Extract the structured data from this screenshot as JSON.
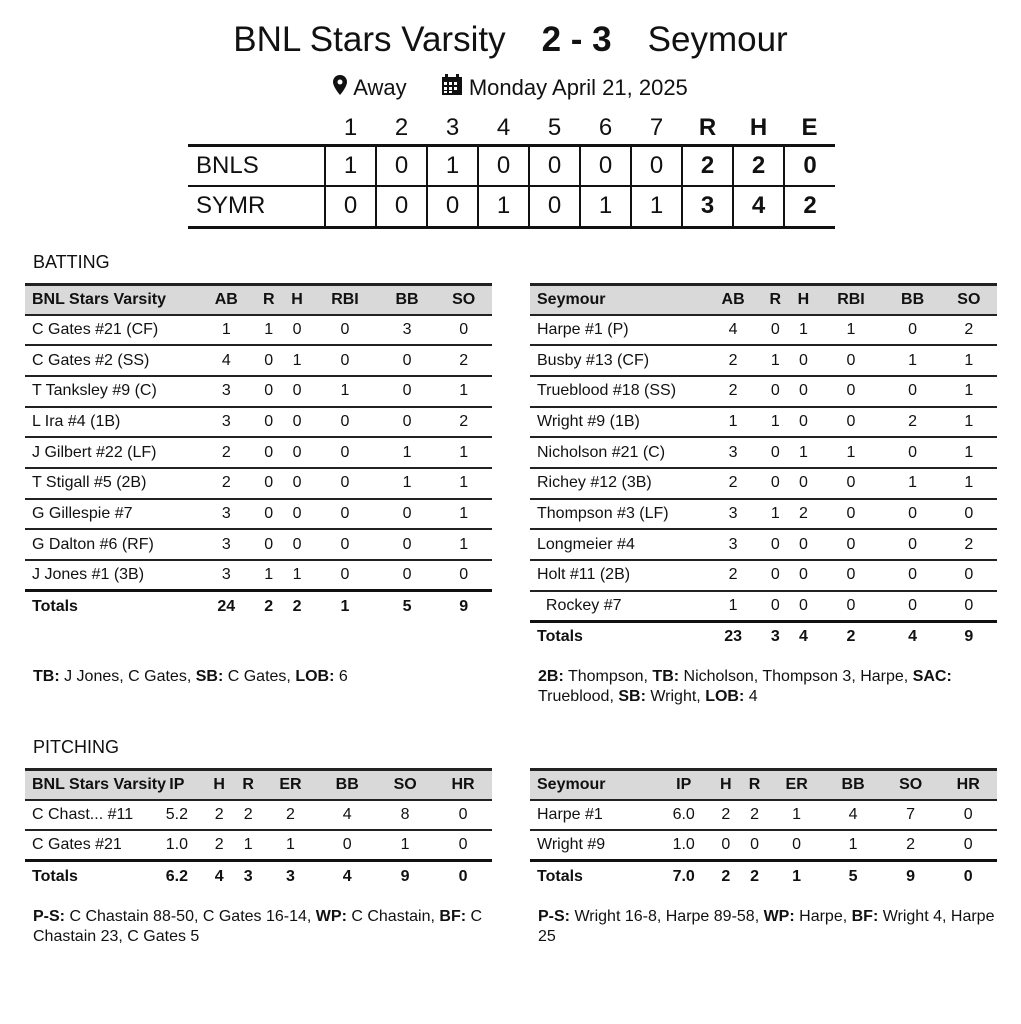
{
  "header": {
    "home": "BNL Stars Varsity",
    "score": "2 - 3",
    "away": "Seymour",
    "location": "Away",
    "date": "Monday April 21, 2025",
    "location_icon": "map-pin-icon",
    "date_icon": "calendar-icon"
  },
  "linescore": {
    "columns": [
      "1",
      "2",
      "3",
      "4",
      "5",
      "6",
      "7",
      "R",
      "H",
      "E"
    ],
    "rows": [
      {
        "team": "BNLS",
        "values": [
          "1",
          "0",
          "1",
          "0",
          "0",
          "0",
          "0",
          "2",
          "2",
          "0"
        ]
      },
      {
        "team": "SYMR",
        "values": [
          "0",
          "0",
          "0",
          "1",
          "0",
          "1",
          "1",
          "3",
          "4",
          "2"
        ]
      }
    ]
  },
  "batting": {
    "label": "BATTING",
    "tables": [
      {
        "team": "BNL Stars Varsity",
        "columns": [
          "AB",
          "R",
          "H",
          "RBI",
          "BB",
          "SO"
        ],
        "rows": [
          [
            "C Gates #21 (CF)",
            "1",
            "1",
            "0",
            "0",
            "3",
            "0"
          ],
          [
            "C Gates #2 (SS)",
            "4",
            "0",
            "1",
            "0",
            "0",
            "2"
          ],
          [
            "T Tanksley #9 (C)",
            "3",
            "0",
            "0",
            "1",
            "0",
            "1"
          ],
          [
            "L Ira #4 (1B)",
            "3",
            "0",
            "0",
            "0",
            "0",
            "2"
          ],
          [
            "J Gilbert #22 (LF)",
            "2",
            "0",
            "0",
            "0",
            "1",
            "1"
          ],
          [
            "T Stigall #5 (2B)",
            "2",
            "0",
            "0",
            "0",
            "1",
            "1"
          ],
          [
            "G Gillespie #7",
            "3",
            "0",
            "0",
            "0",
            "0",
            "1"
          ],
          [
            "G Dalton #6 (RF)",
            "3",
            "0",
            "0",
            "0",
            "0",
            "1"
          ],
          [
            "J Jones #1 (3B)",
            "3",
            "1",
            "1",
            "0",
            "0",
            "0"
          ]
        ],
        "totals": [
          "Totals",
          "24",
          "2",
          "2",
          "1",
          "5",
          "9"
        ],
        "notes": [
          [
            "TB:",
            " J Jones, C Gates, "
          ],
          [
            "SB:",
            " C Gates, "
          ],
          [
            "LOB:",
            " 6"
          ]
        ]
      },
      {
        "team": "Seymour",
        "columns": [
          "AB",
          "R",
          "H",
          "RBI",
          "BB",
          "SO"
        ],
        "rows": [
          [
            "Harpe #1 (P)",
            "4",
            "0",
            "1",
            "1",
            "0",
            "2"
          ],
          [
            "Busby #13 (CF)",
            "2",
            "1",
            "0",
            "0",
            "1",
            "1"
          ],
          [
            "Trueblood #18 (SS)",
            "2",
            "0",
            "0",
            "0",
            "0",
            "1"
          ],
          [
            "Wright #9 (1B)",
            "1",
            "1",
            "0",
            "0",
            "2",
            "1"
          ],
          [
            "Nicholson #21 (C)",
            "3",
            "0",
            "1",
            "1",
            "0",
            "1"
          ],
          [
            "Richey #12 (3B)",
            "2",
            "0",
            "0",
            "0",
            "1",
            "1"
          ],
          [
            "Thompson #3 (LF)",
            "3",
            "1",
            "2",
            "0",
            "0",
            "0"
          ],
          [
            "Longmeier #4",
            "3",
            "0",
            "0",
            "0",
            "0",
            "2"
          ],
          [
            "Holt #11 (2B)",
            "2",
            "0",
            "0",
            "0",
            "0",
            "0"
          ],
          [
            "  Rockey #7",
            "1",
            "0",
            "0",
            "0",
            "0",
            "0"
          ]
        ],
        "totals": [
          "Totals",
          "23",
          "3",
          "4",
          "2",
          "4",
          "9"
        ],
        "notes": [
          [
            "2B:",
            " Thompson, "
          ],
          [
            "TB:",
            " Nicholson, Thompson 3, Harpe, "
          ],
          [
            "SAC:",
            " Trueblood, "
          ],
          [
            "SB:",
            " Wright, "
          ],
          [
            "LOB:",
            " 4"
          ]
        ]
      }
    ]
  },
  "pitching": {
    "label": "PITCHING",
    "tables": [
      {
        "team": "BNL Stars Varsity",
        "columns": [
          "IP",
          "H",
          "R",
          "ER",
          "BB",
          "SO",
          "HR"
        ],
        "rows": [
          [
            "C Chast... #11",
            "5.2",
            "2",
            "2",
            "2",
            "4",
            "8",
            "0"
          ],
          [
            "C Gates #21",
            "1.0",
            "2",
            "1",
            "1",
            "0",
            "1",
            "0"
          ]
        ],
        "totals": [
          "Totals",
          "6.2",
          "4",
          "3",
          "3",
          "4",
          "9",
          "0"
        ],
        "notes": [
          [
            "P-S:",
            " C Chastain 88-50, C Gates 16-14, "
          ],
          [
            "WP:",
            " C Chastain, "
          ],
          [
            "BF:",
            " C Chastain 23, C Gates 5"
          ]
        ]
      },
      {
        "team": "Seymour",
        "columns": [
          "IP",
          "H",
          "R",
          "ER",
          "BB",
          "SO",
          "HR"
        ],
        "rows": [
          [
            "Harpe #1",
            "6.0",
            "2",
            "2",
            "1",
            "4",
            "7",
            "0"
          ],
          [
            "Wright #9",
            "1.0",
            "0",
            "0",
            "0",
            "1",
            "2",
            "0"
          ]
        ],
        "totals": [
          "Totals",
          "7.0",
          "2",
          "2",
          "1",
          "5",
          "9",
          "0"
        ],
        "notes": [
          [
            "P-S:",
            " Wright 16-8, Harpe 89-58, "
          ],
          [
            "WP:",
            " Harpe, "
          ],
          [
            "BF:",
            " Wright 4, Harpe 25"
          ]
        ]
      }
    ]
  }
}
